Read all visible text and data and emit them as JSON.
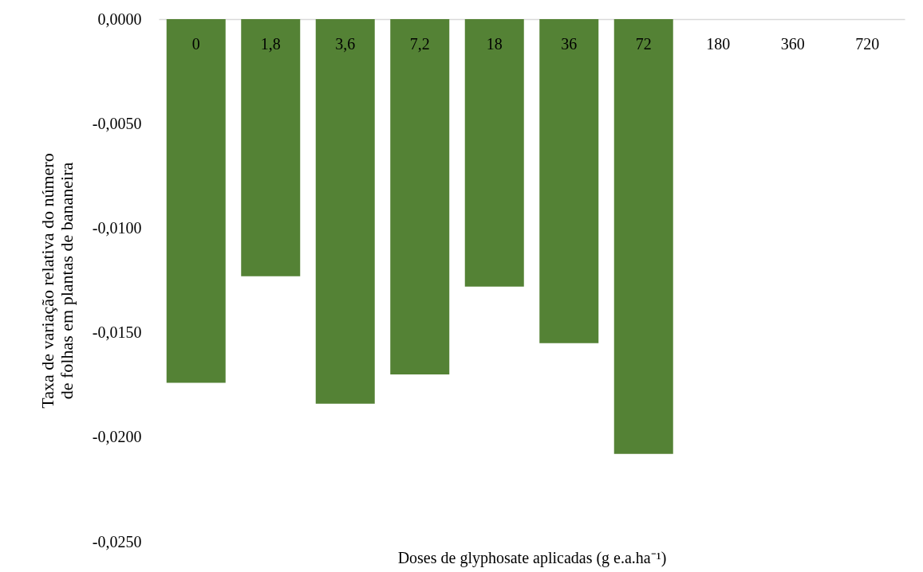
{
  "chart_data": {
    "type": "bar",
    "xlabel": "Doses de glyphosate aplicadas (g e.a.ha⁻¹)",
    "ylabel": "Taxa de variação relativa do número de folhas em plantas de bananeira",
    "categories": [
      "0",
      "1,8",
      "3,6",
      "7,2",
      "18",
      "36",
      "72",
      "180",
      "360",
      "720"
    ],
    "values": [
      -0.0174,
      -0.0123,
      -0.0184,
      -0.017,
      -0.0128,
      -0.0155,
      -0.0208,
      0,
      0,
      0
    ],
    "color": "#548235",
    "ylim": [
      -0.025,
      0
    ],
    "yticks": [
      {
        "value": 0,
        "label": "0,0000"
      },
      {
        "value": -0.005,
        "label": "-0,0050"
      },
      {
        "value": -0.01,
        "label": "-0,0100"
      },
      {
        "value": -0.015,
        "label": "-0,0150"
      },
      {
        "value": -0.02,
        "label": "-0,0200"
      },
      {
        "value": -0.025,
        "label": "-0,0250"
      }
    ],
    "grid": false
  }
}
